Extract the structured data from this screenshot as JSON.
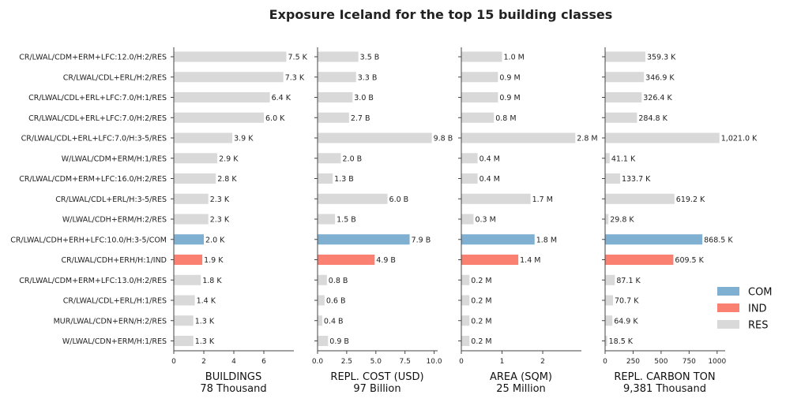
{
  "chart_data": {
    "type": "bar",
    "orientation": "horizontal",
    "title": "Exposure Iceland for the top 15 building classes",
    "categories": [
      "CR/LWAL/CDM+ERM+LFC:12.0/H:2/RES",
      "CR/LWAL/CDL+ERL/H:2/RES",
      "CR/LWAL/CDL+ERL+LFC:7.0/H:1/RES",
      "CR/LWAL/CDL+ERL+LFC:7.0/H:2/RES",
      "CR/LWAL/CDL+ERL+LFC:7.0/H:3-5/RES",
      "W/LWAL/CDM+ERM/H:1/RES",
      "CR/LWAL/CDM+ERM+LFC:16.0/H:2/RES",
      "CR/LWAL/CDL+ERL/H:3-5/RES",
      "W/LWAL/CDH+ERM/H:2/RES",
      "CR/LWAL/CDH+ERH+LFC:10.0/H:3-5/COM",
      "CR/LWAL/CDH+ERH/H:1/IND",
      "CR/LWAL/CDM+ERM+LFC:13.0/H:2/RES",
      "CR/LWAL/CDL+ERL/H:1/RES",
      "MUR/LWAL/CDN+ERN/H:2/RES",
      "W/LWAL/CDN+ERM/H:1/RES"
    ],
    "occupancy": [
      "RES",
      "RES",
      "RES",
      "RES",
      "RES",
      "RES",
      "RES",
      "RES",
      "RES",
      "COM",
      "IND",
      "RES",
      "RES",
      "RES",
      "RES"
    ],
    "colors": {
      "COM": "#7fafd1",
      "IND": "#fa8072",
      "RES": "#d9d9d9"
    },
    "legend": {
      "position": "right",
      "entries": [
        {
          "label": "COM",
          "key": "COM"
        },
        {
          "label": "IND",
          "key": "IND"
        },
        {
          "label": "RES",
          "key": "RES"
        }
      ]
    },
    "panels": [
      {
        "xlabel": "BUILDINGS",
        "total": "78 Thousand",
        "unit": "thousand",
        "xlim": [
          0,
          8
        ],
        "xticks": [
          0,
          2,
          4,
          6
        ],
        "xtick_labels": [
          "0",
          "2",
          "4",
          "6"
        ],
        "values": [
          7.5,
          7.3,
          6.4,
          6.0,
          3.9,
          2.9,
          2.8,
          2.3,
          2.3,
          2.0,
          1.9,
          1.8,
          1.4,
          1.3,
          1.3
        ],
        "labels": [
          "7.5 K",
          "7.3 K",
          "6.4 K",
          "6.0 K",
          "3.9 K",
          "2.9 K",
          "2.8 K",
          "2.3 K",
          "2.3 K",
          "2.0 K",
          "1.9 K",
          "1.8 K",
          "1.4 K",
          "1.3 K",
          "1.3 K"
        ]
      },
      {
        "xlabel": "REPL. COST (USD)",
        "total": "97 Billion",
        "unit": "billion USD",
        "xlim": [
          0,
          10.3
        ],
        "xticks": [
          0,
          2.5,
          5,
          7.5,
          10
        ],
        "xtick_labels": [
          "0.0",
          "2.5",
          "5.0",
          "7.5",
          "10.0"
        ],
        "values": [
          3.5,
          3.3,
          3.0,
          2.7,
          9.8,
          2.0,
          1.3,
          6.0,
          1.5,
          7.9,
          4.9,
          0.8,
          0.6,
          0.4,
          0.9
        ],
        "labels": [
          "3.5 B",
          "3.3 B",
          "3.0 B",
          "2.7 B",
          "9.8 B",
          "2.0 B",
          "1.3 B",
          "6.0 B",
          "1.5 B",
          "7.9 B",
          "4.9 B",
          "0.8 B",
          "0.6 B",
          "0.4 B",
          "0.9 B"
        ]
      },
      {
        "xlabel": "AREA (SQM)",
        "total": "25 Million",
        "unit": "million sqm",
        "xlim": [
          0,
          2.95
        ],
        "xticks": [
          0,
          1,
          2
        ],
        "xtick_labels": [
          "0",
          "1",
          "2"
        ],
        "values": [
          1.0,
          0.9,
          0.9,
          0.8,
          2.8,
          0.4,
          0.4,
          1.7,
          0.3,
          1.8,
          1.4,
          0.2,
          0.2,
          0.2,
          0.2
        ],
        "labels": [
          "1.0 M",
          "0.9 M",
          "0.9 M",
          "0.8 M",
          "2.8 M",
          "0.4 M",
          "0.4 M",
          "1.7 M",
          "0.3 M",
          "1.8 M",
          "1.4 M",
          "0.2 M",
          "0.2 M",
          "0.2 M",
          "0.2 M"
        ]
      },
      {
        "xlabel": "REPL. CARBON TON",
        "total": "9,381 Thousand",
        "unit": "thousand ton",
        "xlim": [
          0,
          1072
        ],
        "xticks": [
          0,
          250,
          500,
          750,
          1000
        ],
        "xtick_labels": [
          "0",
          "250",
          "500",
          "750",
          "1000"
        ],
        "values": [
          359.3,
          346.9,
          326.4,
          284.8,
          1021.0,
          41.1,
          133.7,
          619.2,
          29.8,
          868.5,
          609.5,
          87.1,
          70.7,
          64.9,
          18.5
        ],
        "labels": [
          "359.3 K",
          "346.9 K",
          "326.4 K",
          "284.8 K",
          "1,021.0 K",
          "41.1 K",
          "133.7 K",
          "619.2 K",
          "29.8 K",
          "868.5 K",
          "609.5 K",
          "87.1 K",
          "70.7 K",
          "64.9 K",
          "18.5 K"
        ]
      }
    ]
  }
}
